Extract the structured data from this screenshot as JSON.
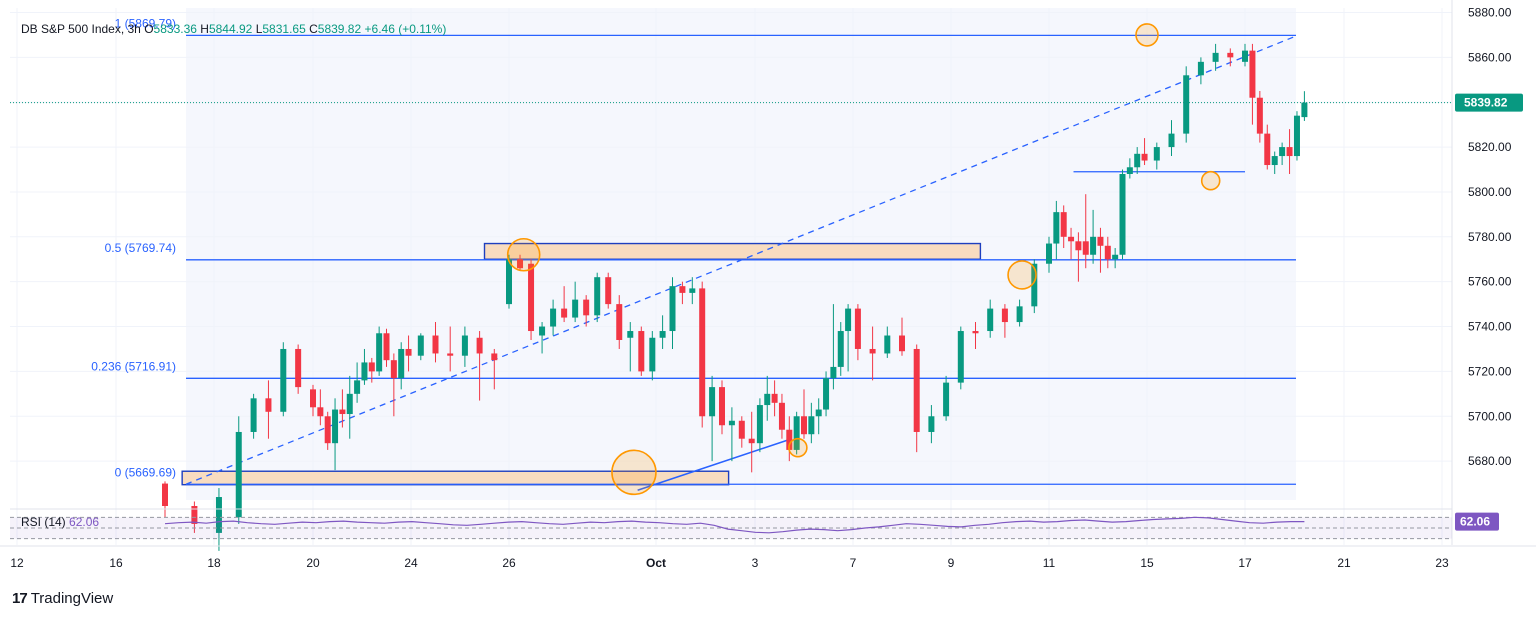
{
  "legend": {
    "symbol": "DB S&P 500 Index, 3h",
    "o_label": "O",
    "o": "5833.36",
    "h_label": "H",
    "h": "5844.92",
    "l_label": "L",
    "l": "5831.65",
    "c_label": "C",
    "c": "5839.82",
    "change": "+6.46 (+0.11%)"
  },
  "brand": {
    "logo": "17",
    "name": "TradingView"
  },
  "colors": {
    "up": "#089981",
    "down": "#f23645",
    "fib": "#2962ff",
    "zone_fill": "#f8dcc0",
    "zone_stroke": "#1e3fbf",
    "circle": "#ff9800",
    "rsi": "#7e57c2",
    "price_tag": "#089981"
  },
  "chart_data": {
    "type": "candlestick",
    "title": "DB S&P 500 Index, 3h",
    "ylim": [
      5660,
      5882
    ],
    "y_ticks": [
      5680,
      5700,
      5720,
      5740,
      5760,
      5780,
      5800,
      5820,
      5840,
      5860,
      5880
    ],
    "y_tick_labels": [
      "5680.00",
      "5700.00",
      "5720.00",
      "5740.00",
      "5760.00",
      "5780.00",
      "5800.00",
      "5820.00",
      "5840.00",
      "5860.00",
      "5880.00"
    ],
    "x_range_days": [
      12,
      23
    ],
    "x_ticks": [
      {
        "day": 12,
        "label": "12"
      },
      {
        "day": 16,
        "label": "16"
      },
      {
        "day": 18,
        "label": "18"
      },
      {
        "day": 20,
        "label": "20"
      },
      {
        "day": 24,
        "label": "24"
      },
      {
        "day": 26,
        "label": "26"
      },
      {
        "day": 30,
        "label": "Oct"
      },
      {
        "day": 33,
        "label": "3"
      },
      {
        "day": 37,
        "label": "7"
      },
      {
        "day": 39,
        "label": "9"
      },
      {
        "day": 41,
        "label": "11"
      },
      {
        "day": 45,
        "label": "15"
      },
      {
        "day": 47,
        "label": "17"
      },
      {
        "day": 51,
        "label": "21"
      },
      {
        "day": 53,
        "label": "23"
      }
    ],
    "last_price": 5839.82,
    "last_price_label": "5839.82",
    "fib_levels": [
      {
        "label": "1 (5869.79)",
        "value": 5869.79
      },
      {
        "label": "0.5 (5769.74)",
        "value": 5769.74
      },
      {
        "label": "0.236 (5716.91)",
        "value": 5716.91
      },
      {
        "label": "0 (5669.69)",
        "value": 5669.69
      }
    ],
    "support_line": {
      "value": 5809,
      "day_start": 42.0,
      "day_end": 47.0
    },
    "zones": [
      {
        "day_start": 17.35,
        "day_end": 32.2,
        "low": 5669.5,
        "high": 5675.5
      },
      {
        "day_start": 25.5,
        "day_end": 39.6,
        "low": 5770,
        "high": 5777
      }
    ],
    "trendline_dashed": {
      "day_start": 17.0,
      "value_start": 5669.7,
      "day_end": 49.6,
      "value_end": 5869.5
    },
    "trendline_solid": {
      "day_start": 29.5,
      "value_start": 5667,
      "day_end": 34.5,
      "value_end": 5690
    },
    "circles": [
      {
        "day": 26.4,
        "value": 5772,
        "r": 16
      },
      {
        "day": 29.4,
        "value": 5675,
        "r": 22
      },
      {
        "day": 34.75,
        "value": 5686,
        "r": 9
      },
      {
        "day": 40.45,
        "value": 5763,
        "r": 14
      },
      {
        "day": 45.0,
        "value": 5870,
        "r": 11
      },
      {
        "day": 46.3,
        "value": 5805,
        "r": 9
      }
    ],
    "candles": [
      {
        "t": 17.0,
        "o": 5670,
        "h": 5671,
        "l": 5655,
        "c": 5660
      },
      {
        "t": 17.6,
        "o": 5660,
        "h": 5662,
        "l": 5648,
        "c": 5652
      },
      {
        "t": 18.1,
        "o": 5648,
        "h": 5668,
        "l": 5640,
        "c": 5664
      },
      {
        "t": 18.5,
        "o": 5655,
        "h": 5700,
        "l": 5652,
        "c": 5693
      },
      {
        "t": 18.8,
        "o": 5693,
        "h": 5710,
        "l": 5690,
        "c": 5708
      },
      {
        "t": 19.1,
        "o": 5708,
        "h": 5716,
        "l": 5690,
        "c": 5702
      },
      {
        "t": 19.4,
        "o": 5702,
        "h": 5733,
        "l": 5700,
        "c": 5730
      },
      {
        "t": 19.7,
        "o": 5730,
        "h": 5732,
        "l": 5710,
        "c": 5713
      },
      {
        "t": 20.0,
        "o": 5712,
        "h": 5714,
        "l": 5700,
        "c": 5704
      },
      {
        "t": 20.3,
        "o": 5704,
        "h": 5712,
        "l": 5696,
        "c": 5700
      },
      {
        "t": 20.6,
        "o": 5700,
        "h": 5702,
        "l": 5685,
        "c": 5688
      },
      {
        "t": 20.9,
        "o": 5688,
        "h": 5708,
        "l": 5676,
        "c": 5703
      },
      {
        "t": 21.2,
        "o": 5703,
        "h": 5712,
        "l": 5695,
        "c": 5701
      },
      {
        "t": 21.5,
        "o": 5701,
        "h": 5718,
        "l": 5690,
        "c": 5710
      },
      {
        "t": 21.8,
        "o": 5710,
        "h": 5724,
        "l": 5706,
        "c": 5716
      },
      {
        "t": 22.1,
        "o": 5716,
        "h": 5730,
        "l": 5714,
        "c": 5724
      },
      {
        "t": 22.4,
        "o": 5724,
        "h": 5726,
        "l": 5715,
        "c": 5720
      },
      {
        "t": 22.7,
        "o": 5720,
        "h": 5740,
        "l": 5718,
        "c": 5737
      },
      {
        "t": 23.0,
        "o": 5737,
        "h": 5739,
        "l": 5722,
        "c": 5725
      },
      {
        "t": 23.3,
        "o": 5725,
        "h": 5728,
        "l": 5700,
        "c": 5717
      },
      {
        "t": 23.6,
        "o": 5717,
        "h": 5733,
        "l": 5712,
        "c": 5730
      },
      {
        "t": 23.9,
        "o": 5730,
        "h": 5736,
        "l": 5720,
        "c": 5727
      },
      {
        "t": 24.2,
        "o": 5727,
        "h": 5737,
        "l": 5725,
        "c": 5736
      },
      {
        "t": 24.5,
        "o": 5736,
        "h": 5742,
        "l": 5724,
        "c": 5728
      },
      {
        "t": 24.8,
        "o": 5728,
        "h": 5740,
        "l": 5720,
        "c": 5727
      },
      {
        "t": 25.1,
        "o": 5727,
        "h": 5740,
        "l": 5722,
        "c": 5736
      },
      {
        "t": 25.4,
        "o": 5735,
        "h": 5738,
        "l": 5707,
        "c": 5728
      },
      {
        "t": 25.7,
        "o": 5728,
        "h": 5730,
        "l": 5712,
        "c": 5725
      },
      {
        "t": 26.0,
        "o": 5750,
        "h": 5772,
        "l": 5748,
        "c": 5770
      },
      {
        "t": 26.3,
        "o": 5770,
        "h": 5772,
        "l": 5765,
        "c": 5766
      },
      {
        "t": 26.6,
        "o": 5768,
        "h": 5770,
        "l": 5734,
        "c": 5738
      },
      {
        "t": 26.9,
        "o": 5736,
        "h": 5742,
        "l": 5728,
        "c": 5740
      },
      {
        "t": 27.2,
        "o": 5740,
        "h": 5752,
        "l": 5736,
        "c": 5748
      },
      {
        "t": 27.5,
        "o": 5748,
        "h": 5758,
        "l": 5742,
        "c": 5744
      },
      {
        "t": 27.8,
        "o": 5744,
        "h": 5760,
        "l": 5742,
        "c": 5752
      },
      {
        "t": 28.1,
        "o": 5752,
        "h": 5754,
        "l": 5740,
        "c": 5745
      },
      {
        "t": 28.4,
        "o": 5745,
        "h": 5764,
        "l": 5742,
        "c": 5762
      },
      {
        "t": 28.7,
        "o": 5762,
        "h": 5764,
        "l": 5748,
        "c": 5750
      },
      {
        "t": 29.0,
        "o": 5750,
        "h": 5754,
        "l": 5730,
        "c": 5734
      },
      {
        "t": 29.3,
        "o": 5735,
        "h": 5742,
        "l": 5720,
        "c": 5738
      },
      {
        "t": 29.6,
        "o": 5738,
        "h": 5740,
        "l": 5718,
        "c": 5720
      },
      {
        "t": 29.9,
        "o": 5720,
        "h": 5738,
        "l": 5716,
        "c": 5735
      },
      {
        "t": 30.2,
        "o": 5735,
        "h": 5745,
        "l": 5730,
        "c": 5738
      },
      {
        "t": 30.5,
        "o": 5738,
        "h": 5762,
        "l": 5730,
        "c": 5758
      },
      {
        "t": 30.8,
        "o": 5758,
        "h": 5760,
        "l": 5750,
        "c": 5755
      },
      {
        "t": 31.1,
        "o": 5755,
        "h": 5762,
        "l": 5750,
        "c": 5757
      },
      {
        "t": 31.4,
        "o": 5757,
        "h": 5760,
        "l": 5695,
        "c": 5700
      },
      {
        "t": 31.7,
        "o": 5700,
        "h": 5718,
        "l": 5680,
        "c": 5713
      },
      {
        "t": 32.0,
        "o": 5713,
        "h": 5716,
        "l": 5692,
        "c": 5696
      },
      {
        "t": 32.3,
        "o": 5696,
        "h": 5704,
        "l": 5680,
        "c": 5698
      },
      {
        "t": 32.6,
        "o": 5698,
        "h": 5700,
        "l": 5686,
        "c": 5690
      },
      {
        "t": 32.9,
        "o": 5690,
        "h": 5702,
        "l": 5675,
        "c": 5688
      },
      {
        "t": 33.2,
        "o": 5688,
        "h": 5708,
        "l": 5684,
        "c": 5705
      },
      {
        "t": 33.5,
        "o": 5705,
        "h": 5718,
        "l": 5698,
        "c": 5710
      },
      {
        "t": 33.8,
        "o": 5710,
        "h": 5716,
        "l": 5700,
        "c": 5706
      },
      {
        "t": 34.1,
        "o": 5706,
        "h": 5710,
        "l": 5690,
        "c": 5694
      },
      {
        "t": 34.4,
        "o": 5694,
        "h": 5700,
        "l": 5680,
        "c": 5685
      },
      {
        "t": 34.7,
        "o": 5685,
        "h": 5702,
        "l": 5683,
        "c": 5700
      },
      {
        "t": 35.0,
        "o": 5700,
        "h": 5712,
        "l": 5690,
        "c": 5692
      },
      {
        "t": 35.3,
        "o": 5692,
        "h": 5706,
        "l": 5688,
        "c": 5700
      },
      {
        "t": 35.6,
        "o": 5700,
        "h": 5708,
        "l": 5692,
        "c": 5703
      },
      {
        "t": 35.9,
        "o": 5703,
        "h": 5720,
        "l": 5700,
        "c": 5717
      },
      {
        "t": 36.2,
        "o": 5717,
        "h": 5750,
        "l": 5712,
        "c": 5722
      },
      {
        "t": 36.5,
        "o": 5722,
        "h": 5742,
        "l": 5718,
        "c": 5738
      },
      {
        "t": 36.8,
        "o": 5738,
        "h": 5750,
        "l": 5720,
        "c": 5748
      },
      {
        "t": 37.1,
        "o": 5748,
        "h": 5750,
        "l": 5725,
        "c": 5730
      },
      {
        "t": 37.4,
        "o": 5730,
        "h": 5740,
        "l": 5716,
        "c": 5728
      },
      {
        "t": 37.7,
        "o": 5728,
        "h": 5740,
        "l": 5726,
        "c": 5736
      },
      {
        "t": 38.0,
        "o": 5736,
        "h": 5744,
        "l": 5727,
        "c": 5729
      },
      {
        "t": 38.3,
        "o": 5730,
        "h": 5732,
        "l": 5684,
        "c": 5693
      },
      {
        "t": 38.6,
        "o": 5693,
        "h": 5705,
        "l": 5688,
        "c": 5700
      },
      {
        "t": 38.9,
        "o": 5700,
        "h": 5718,
        "l": 5698,
        "c": 5715
      },
      {
        "t": 39.2,
        "o": 5715,
        "h": 5740,
        "l": 5712,
        "c": 5738
      },
      {
        "t": 39.5,
        "o": 5738,
        "h": 5742,
        "l": 5730,
        "c": 5737
      },
      {
        "t": 39.8,
        "o": 5738,
        "h": 5752,
        "l": 5735,
        "c": 5748
      },
      {
        "t": 40.1,
        "o": 5748,
        "h": 5750,
        "l": 5735,
        "c": 5742
      },
      {
        "t": 40.4,
        "o": 5742,
        "h": 5752,
        "l": 5740,
        "c": 5749
      },
      {
        "t": 40.7,
        "o": 5749,
        "h": 5770,
        "l": 5746,
        "c": 5768
      },
      {
        "t": 41.0,
        "o": 5768,
        "h": 5780,
        "l": 5764,
        "c": 5777
      },
      {
        "t": 41.3,
        "o": 5777,
        "h": 5796,
        "l": 5770,
        "c": 5791
      },
      {
        "t": 41.6,
        "o": 5791,
        "h": 5794,
        "l": 5775,
        "c": 5780
      },
      {
        "t": 41.9,
        "o": 5780,
        "h": 5784,
        "l": 5770,
        "c": 5778
      },
      {
        "t": 42.2,
        "o": 5778,
        "h": 5782,
        "l": 5760,
        "c": 5774
      },
      {
        "t": 42.5,
        "o": 5778,
        "h": 5799,
        "l": 5766,
        "c": 5772
      },
      {
        "t": 42.8,
        "o": 5772,
        "h": 5792,
        "l": 5768,
        "c": 5780
      },
      {
        "t": 43.1,
        "o": 5780,
        "h": 5784,
        "l": 5764,
        "c": 5776
      },
      {
        "t": 43.4,
        "o": 5776,
        "h": 5780,
        "l": 5766,
        "c": 5770
      },
      {
        "t": 43.7,
        "o": 5770,
        "h": 5775,
        "l": 5766,
        "c": 5772
      },
      {
        "t": 44.0,
        "o": 5772,
        "h": 5810,
        "l": 5770,
        "c": 5808
      },
      {
        "t": 44.3,
        "o": 5808,
        "h": 5815,
        "l": 5806,
        "c": 5811
      },
      {
        "t": 44.6,
        "o": 5811,
        "h": 5820,
        "l": 5808,
        "c": 5817
      },
      {
        "t": 44.9,
        "o": 5817,
        "h": 5824,
        "l": 5812,
        "c": 5814
      },
      {
        "t": 45.2,
        "o": 5814,
        "h": 5822,
        "l": 5810,
        "c": 5820
      },
      {
        "t": 45.5,
        "o": 5820,
        "h": 5832,
        "l": 5816,
        "c": 5826
      },
      {
        "t": 45.8,
        "o": 5826,
        "h": 5856,
        "l": 5822,
        "c": 5852
      },
      {
        "t": 46.1,
        "o": 5852,
        "h": 5860,
        "l": 5848,
        "c": 5858
      },
      {
        "t": 46.4,
        "o": 5858,
        "h": 5866,
        "l": 5854,
        "c": 5862
      },
      {
        "t": 46.7,
        "o": 5862,
        "h": 5864,
        "l": 5856,
        "c": 5860
      },
      {
        "t": 47.0,
        "o": 5858,
        "h": 5866,
        "l": 5856,
        "c": 5863
      },
      {
        "t": 47.3,
        "o": 5863,
        "h": 5866,
        "l": 5830,
        "c": 5842
      },
      {
        "t": 47.6,
        "o": 5842,
        "h": 5845,
        "l": 5822,
        "c": 5826
      },
      {
        "t": 47.9,
        "o": 5826,
        "h": 5830,
        "l": 5810,
        "c": 5812
      },
      {
        "t": 48.2,
        "o": 5812,
        "h": 5818,
        "l": 5808,
        "c": 5816
      },
      {
        "t": 48.5,
        "o": 5816,
        "h": 5822,
        "l": 5812,
        "c": 5820
      },
      {
        "t": 48.8,
        "o": 5820,
        "h": 5828,
        "l": 5808,
        "c": 5816
      },
      {
        "t": 49.1,
        "o": 5816,
        "h": 5836,
        "l": 5814,
        "c": 5834
      },
      {
        "t": 49.4,
        "o": 5833.36,
        "h": 5844.92,
        "l": 5831.65,
        "c": 5839.82
      }
    ],
    "rsi": {
      "label": "RSI (14)",
      "value_label": "62.06",
      "last": 62.06,
      "bands": [
        70,
        50,
        30
      ],
      "values": [
        58,
        60,
        61,
        59,
        62,
        63,
        60,
        58,
        57,
        59,
        61,
        60,
        62,
        63,
        61,
        60,
        59,
        61,
        62,
        60,
        58,
        56,
        55,
        57,
        59,
        61,
        62,
        60,
        58,
        57,
        59,
        61,
        60,
        62,
        63,
        61,
        60,
        58,
        57,
        59,
        55,
        48,
        45,
        42,
        41,
        43,
        46,
        48,
        47,
        45,
        47,
        50,
        52,
        55,
        58,
        57,
        55,
        53,
        52,
        55,
        57,
        60,
        62,
        63,
        61,
        62,
        64,
        65,
        63,
        61,
        62,
        64,
        66,
        67,
        68,
        70,
        69,
        66,
        63,
        60,
        59,
        61,
        62,
        62
      ]
    }
  }
}
